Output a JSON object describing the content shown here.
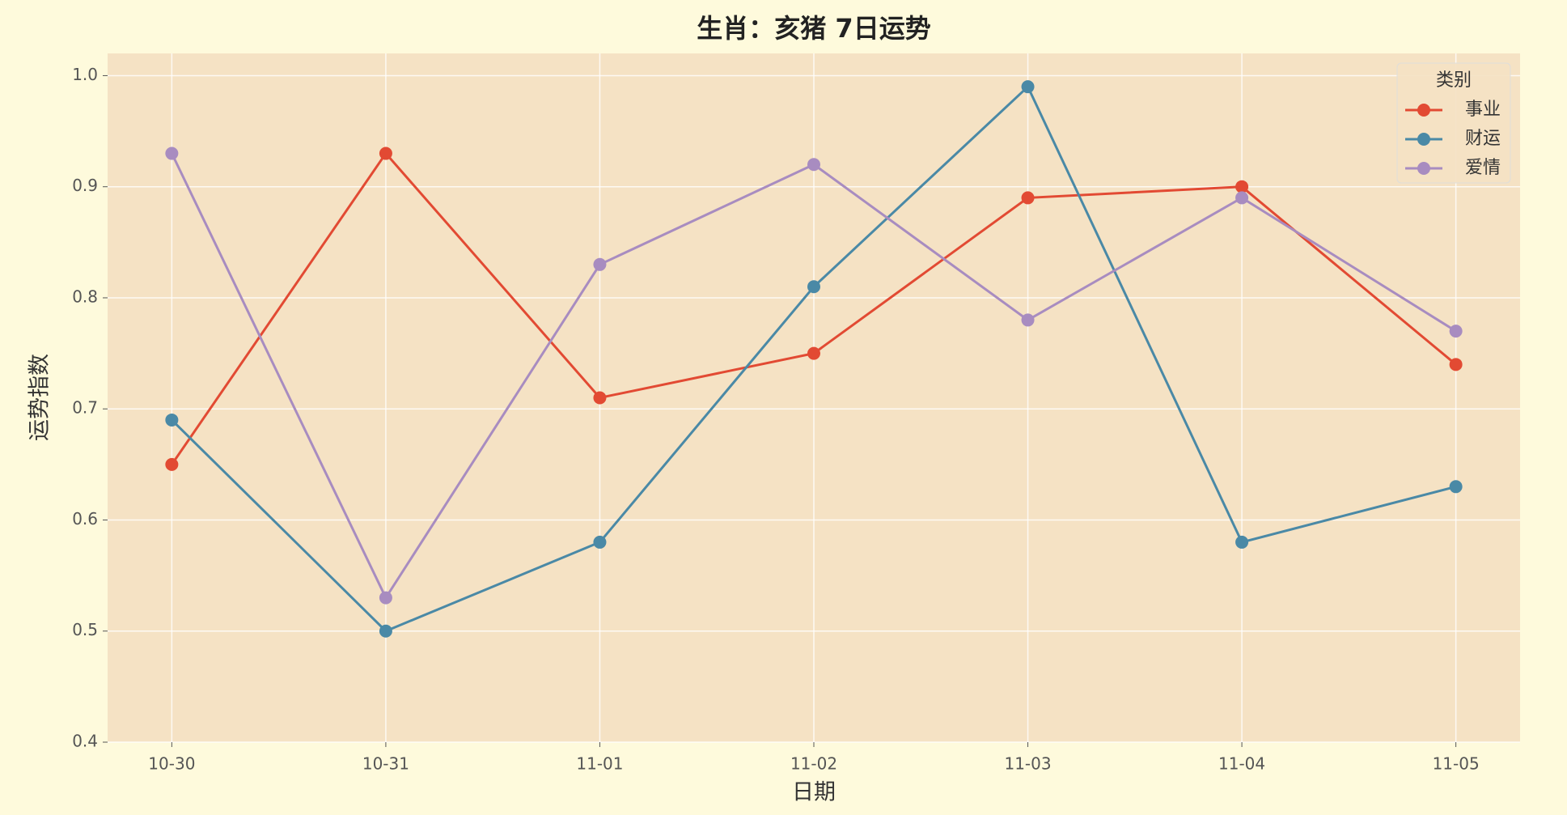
{
  "chart_data": {
    "type": "line",
    "title": "生肖：亥猪 7日运势",
    "x_label": "日期",
    "y_label": "运势指数",
    "categories": [
      "10-30",
      "10-31",
      "11-01",
      "11-02",
      "11-03",
      "11-04",
      "11-05"
    ],
    "series": [
      {
        "name": "事业",
        "color": "#E24A33",
        "values": [
          0.65,
          0.93,
          0.71,
          0.75,
          0.89,
          0.9,
          0.74
        ]
      },
      {
        "name": "财运",
        "color": "#4A89A6",
        "values": [
          0.69,
          0.5,
          0.58,
          0.81,
          0.99,
          0.58,
          0.63
        ]
      },
      {
        "name": "爱情",
        "color": "#A88CC0",
        "values": [
          0.93,
          0.53,
          0.83,
          0.92,
          0.78,
          0.89,
          0.77
        ]
      }
    ],
    "ylim": [
      0.4,
      1.02
    ],
    "yticks": [
      0.4,
      0.5,
      0.6,
      0.7,
      0.8,
      0.9,
      {
        "value": 1,
        "label": "1.0"
      }
    ],
    "grid": true,
    "legend_title": "类别",
    "legend_position": "upper right"
  }
}
